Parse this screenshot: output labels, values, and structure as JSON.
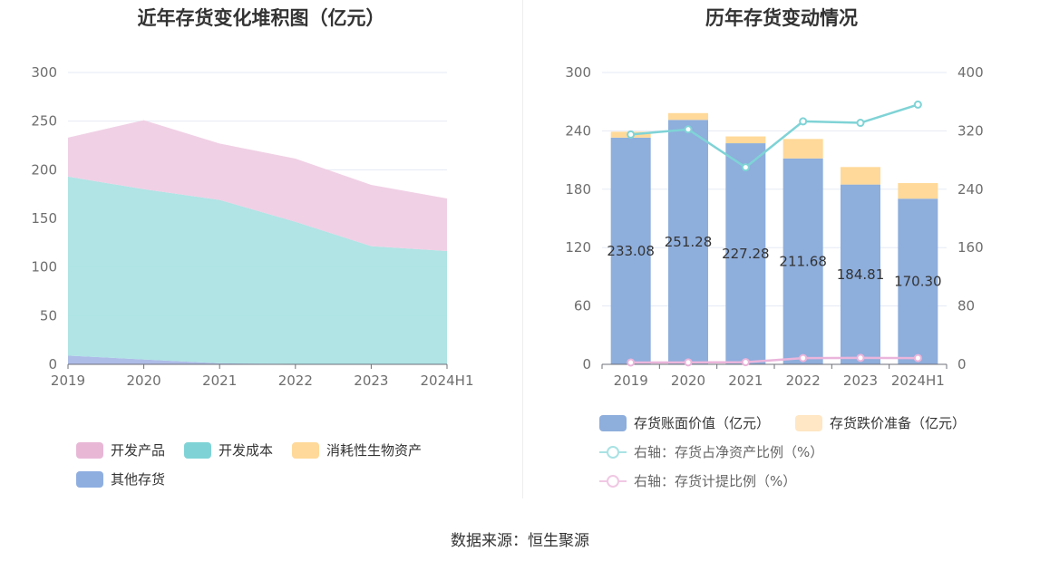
{
  "left": {
    "title": "近年存货变化堆积图（亿元）",
    "legend": [
      {
        "label": "开发产品",
        "color": "#e8b7d6"
      },
      {
        "label": "开发成本",
        "color": "#7fd3d6"
      },
      {
        "label": "消耗性生物资产",
        "color": "#ffd999"
      },
      {
        "label": "其他存货",
        "color": "#8eaee0"
      }
    ]
  },
  "right": {
    "title": "历年存货变动情况",
    "legend": [
      {
        "label": "存货账面价值（亿元）",
        "color": "#8eaedc"
      },
      {
        "label": "存货跌价准备（亿元）",
        "color": "#ffe6c4"
      },
      {
        "label": "右轴：存货占净资产比例（%）",
        "color": "#7fd3d6"
      },
      {
        "label": "右轴：存货计提比例（%）",
        "color": "#ebb5db"
      }
    ]
  },
  "source": "数据来源：恒生聚源",
  "chart_data": [
    {
      "type": "area",
      "title": "近年存货变化堆积图（亿元）",
      "stacked": true,
      "categories": [
        "2019",
        "2020",
        "2021",
        "2022",
        "2023",
        "2024H1"
      ],
      "ylim": [
        0,
        300
      ],
      "yticks": [
        0,
        50,
        100,
        150,
        200,
        250,
        300
      ],
      "grid": true,
      "legend_position": "bottom",
      "series": [
        {
          "name": "其他存货",
          "color": "#a9b8e6",
          "values": [
            9,
            5,
            1,
            0.5,
            0.5,
            0.5
          ]
        },
        {
          "name": "开发成本",
          "color": "#ace3e4",
          "values": [
            184,
            175,
            168,
            146,
            121,
            116
          ]
        },
        {
          "name": "消耗性生物资产",
          "color": "#ffd999",
          "values": [
            0,
            0,
            0,
            0,
            0,
            0
          ]
        },
        {
          "name": "开发产品",
          "color": "#efcde4",
          "values": [
            40,
            71,
            58,
            65,
            63,
            54
          ]
        }
      ]
    },
    {
      "type": "bar",
      "title": "历年存货变动情况",
      "stacked": true,
      "categories": [
        "2019",
        "2020",
        "2021",
        "2022",
        "2023",
        "2024H1"
      ],
      "ylim": [
        0,
        300
      ],
      "yticks": [
        0,
        60,
        120,
        180,
        240,
        300
      ],
      "y2lim": [
        0,
        400
      ],
      "y2ticks": [
        0,
        80,
        160,
        240,
        320,
        400
      ],
      "grid": true,
      "legend_position": "bottom",
      "series": [
        {
          "name": "存货账面价值（亿元）",
          "color": "#8eaedc",
          "values": [
            233.08,
            251.28,
            227.28,
            211.68,
            184.81,
            170.3
          ],
          "labels": [
            "233.08",
            "251.28",
            "227.28",
            "211.68",
            "184.81",
            "170.30"
          ]
        },
        {
          "name": "存货跌价准备（亿元）",
          "color": "#ffd999",
          "values": [
            6,
            7,
            7,
            20,
            18,
            16
          ]
        },
        {
          "name": "右轴：存货占净资产比例（%）",
          "type": "line",
          "axis": "right",
          "color": "#7fd3d6",
          "values": [
            315,
            322,
            270,
            333,
            331,
            356
          ]
        },
        {
          "name": "右轴：存货计提比例（%）",
          "type": "line",
          "axis": "right",
          "color": "#ebb5db",
          "values": [
            2.5,
            2.7,
            3.0,
            8.6,
            8.9,
            8.6
          ]
        }
      ]
    }
  ]
}
